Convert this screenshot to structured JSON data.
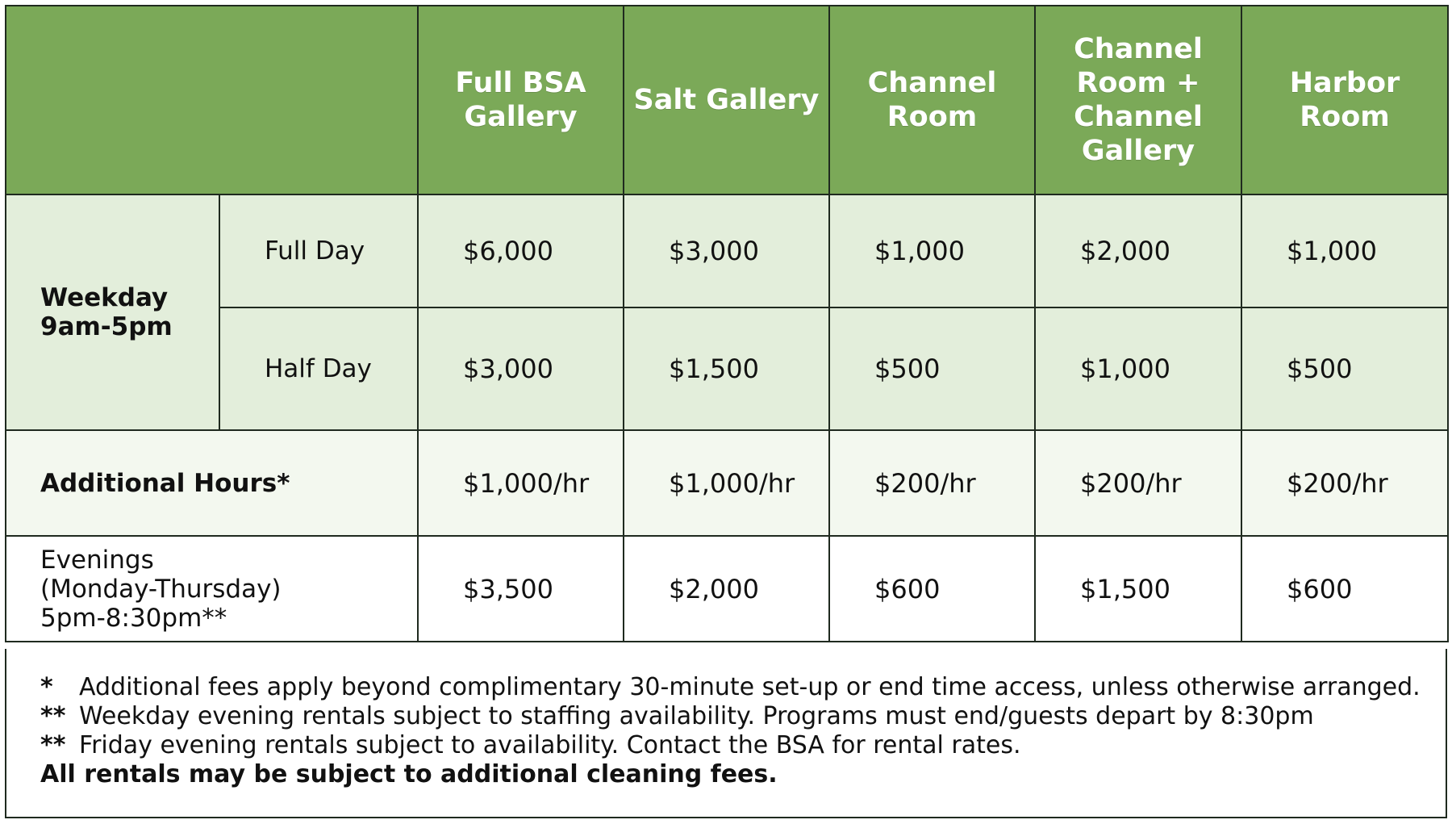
{
  "header": {
    "columns": [
      "Full BSA Gallery",
      "Salt Gallery",
      "Channel Room",
      "Channel Room + Channel Gallery",
      "Harbor Room"
    ]
  },
  "weekday": {
    "label_line1": "Weekday",
    "label_line2": "9am-5pm",
    "full_day": {
      "label": "Full Day",
      "prices": [
        "$6,000",
        "$3,000",
        "$1,000",
        "$2,000",
        "$1,000"
      ]
    },
    "half_day": {
      "label": "Half Day",
      "prices": [
        "$3,000",
        "$1,500",
        "$500",
        "$1,000",
        "$500"
      ]
    }
  },
  "additional_hours": {
    "label": "Additional Hours*",
    "prices": [
      "$1,000/hr",
      "$1,000/hr",
      "$200/hr",
      "$200/hr",
      "$200/hr"
    ]
  },
  "evenings": {
    "label_line1": "Evenings",
    "label_line2": "(Monday-Thursday)",
    "label_line3": "5pm-8:30pm**",
    "prices": [
      "$3,500",
      "$2,000",
      "$600",
      "$1,500",
      "$600"
    ]
  },
  "notes": [
    {
      "mark": "*",
      "text": "Additional fees apply beyond complimentary 30-minute set-up or end time access, unless otherwise arranged."
    },
    {
      "mark": "**",
      "text": "Weekday evening rentals subject to staffing availability. Programs must end/guests depart by 8:30pm"
    },
    {
      "mark": "**",
      "text": "Friday evening rentals subject to availability. Contact the BSA for rental rates."
    }
  ],
  "footer_bold": "All rentals may be subject to additional cleaning fees.",
  "colors": {
    "header_green": "#7ba958",
    "weekday_row": "#e3eedb",
    "additional_row": "#f3f8ef",
    "border": "#1f2a1f"
  }
}
